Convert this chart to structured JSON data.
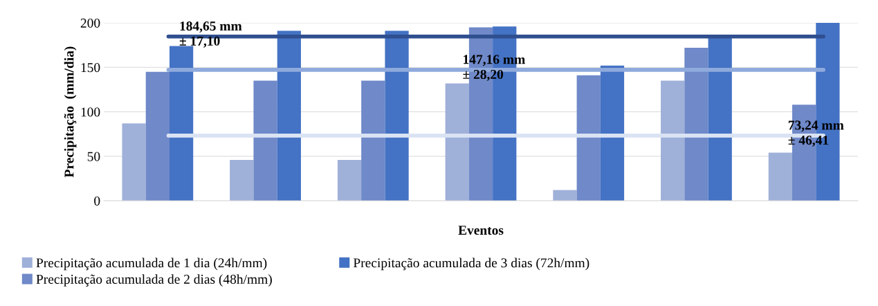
{
  "chart_data": {
    "type": "bar",
    "xlabel": "Eventos",
    "ylabel": "Precipitação  (mm/dia)",
    "categories": [
      null,
      null,
      null,
      null,
      null,
      null,
      null
    ],
    "series": [
      {
        "name": "Precipitação acumulada de 1 dia (24h/mm)",
        "color": "#9fb0d9",
        "values": [
          87,
          46,
          46,
          132,
          12,
          135,
          54
        ]
      },
      {
        "name": "Precipitação acumulada de 2 dias (48h/mm)",
        "color": "#6f89c9",
        "values": [
          145,
          135,
          135,
          195,
          141,
          172,
          108
        ]
      },
      {
        "name": "Precipitação acumulada de 3 dias (72h/mm)",
        "color": "#4472c4",
        "values": [
          174,
          191,
          191,
          196,
          152,
          185,
          200
        ]
      }
    ],
    "ref_lines": [
      {
        "axis": "y",
        "value": 184.65,
        "label": "184,65 mm\n± 17,10",
        "color": "#2f4f8f"
      },
      {
        "axis": "y",
        "value": 147.16,
        "label": "147,16 mm\n± 28,20",
        "color": "#8faadc"
      },
      {
        "axis": "y",
        "value": 73.24,
        "label": "73,24 mm\n± 46,41",
        "color": "#dae3f3"
      }
    ],
    "ylim": [
      0,
      200
    ],
    "yticks": [
      0,
      50,
      100,
      150,
      200
    ],
    "grid": "y",
    "legend": "bottom"
  }
}
